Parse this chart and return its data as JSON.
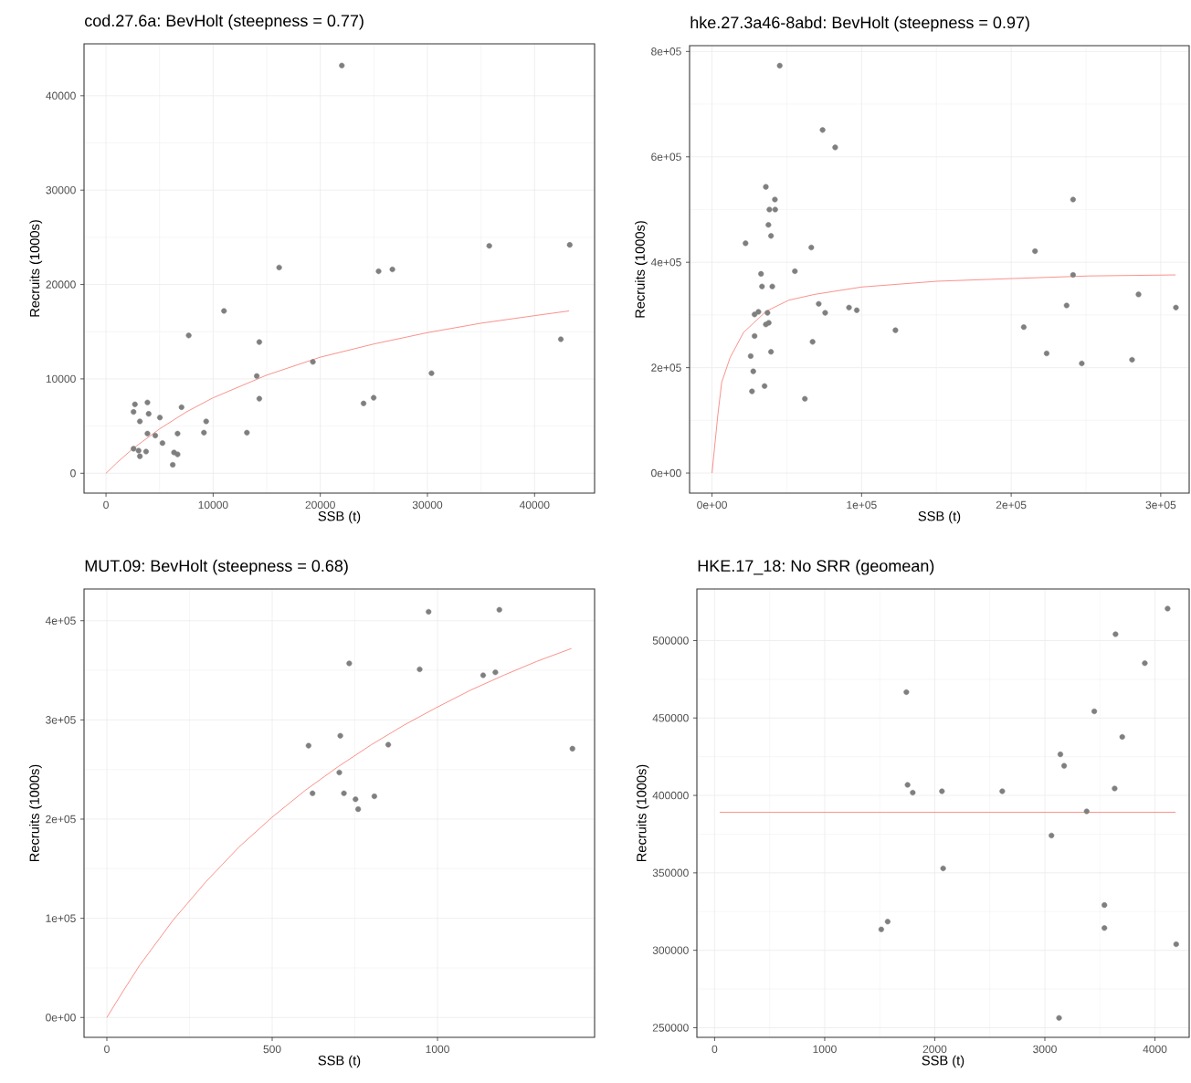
{
  "chart_data": [
    {
      "type": "scatter",
      "title": "cod.27.6a: BevHolt (steepness = 0.77)",
      "xlabel": "SSB (t)",
      "ylabel": "Recruits (1000s)",
      "xlim": [
        -2050,
        45600
      ],
      "ylim": [
        -2100,
        45500
      ],
      "xticks": [
        0,
        10000,
        20000,
        30000,
        40000
      ],
      "yticks": [
        0,
        10000,
        20000,
        30000,
        40000
      ],
      "grid": true,
      "series": [
        {
          "marker": "circle",
          "color": "#7f7f7f",
          "x": [
            2700,
            2570,
            3870,
            3980,
            3160,
            5030,
            7050,
            9350,
            9140,
            3870,
            4600,
            6680,
            5270,
            13150,
            2570,
            3040,
            3740,
            3160,
            6350,
            6680,
            6230,
            14310,
            14070,
            14310,
            7720,
            11010,
            16160,
            19310,
            22010,
            24040,
            24980,
            25440,
            26730,
            30380,
            35770,
            43280,
            42450
          ],
          "values": [
            7300,
            6500,
            7500,
            6300,
            5500,
            5900,
            7000,
            5500,
            4300,
            4200,
            4000,
            4200,
            3200,
            4300,
            2600,
            2400,
            2300,
            1800,
            2200,
            2000,
            900,
            7900,
            10300,
            13900,
            14600,
            17200,
            21800,
            11800,
            43200,
            7400,
            8000,
            21400,
            21600,
            10600,
            24100,
            24200,
            14200
          ]
        },
        {
          "type": "line",
          "marker": "none",
          "color": "#f8766d",
          "x": [
            0,
            1000,
            2500,
            5000,
            7500,
            10000,
            15000,
            20000,
            25000,
            30000,
            35000,
            40000,
            43220
          ],
          "values": [
            0,
            1100,
            2600,
            4700,
            6500,
            8000,
            10400,
            12300,
            13700,
            14900,
            15900,
            16700,
            17200
          ]
        }
      ]
    },
    {
      "type": "scatter",
      "title": "hke.27.3a46-8abd: BevHolt (steepness = 0.97)",
      "xlabel": "SSB (t)",
      "ylabel": "Recruits (1000s)",
      "xlim": [
        -15000,
        319000
      ],
      "ylim": [
        -38000,
        811000
      ],
      "xticks": [
        {
          "value": 0,
          "label": "0e+00"
        },
        {
          "value": 100000,
          "label": "1e+05"
        },
        {
          "value": 200000,
          "label": "2e+05"
        },
        {
          "value": 300000,
          "label": "3e+05"
        }
      ],
      "yticks": [
        {
          "value": 0,
          "label": "0e+00"
        },
        {
          "value": 200000,
          "label": "2e+05"
        },
        {
          "value": 400000,
          "label": "4e+05"
        },
        {
          "value": 600000,
          "label": "6e+05"
        },
        {
          "value": 800000,
          "label": "8e+05"
        }
      ],
      "grid": true,
      "series": [
        {
          "marker": "circle",
          "color": "#7f7f7f",
          "x": [
            45260,
            73920,
            82330,
            35990,
            42030,
            38360,
            42240,
            37720,
            39440,
            22410,
            66380,
            55390,
            32760,
            33410,
            40300,
            71340,
            75650,
            91590,
            96770,
            28450,
            31030,
            37070,
            35990,
            37930,
            28450,
            122630,
            67240,
            25860,
            39440,
            27590,
            35130,
            26720,
            62070,
            208410,
            215950,
            223710,
            237070,
            241380,
            241380,
            247200,
            280820,
            285130,
            310130
          ],
          "values": [
            773000,
            651000,
            618000,
            543000,
            519000,
            500000,
            500000,
            471000,
            450000,
            436000,
            428000,
            383000,
            378000,
            354000,
            354000,
            321000,
            304000,
            314000,
            309000,
            301000,
            306000,
            304000,
            282000,
            285000,
            260000,
            271000,
            249000,
            222000,
            230000,
            193000,
            165000,
            155000,
            141000,
            277000,
            421000,
            227000,
            318000,
            519000,
            376000,
            208000,
            215000,
            339000,
            314000
          ]
        },
        {
          "type": "line",
          "marker": "none",
          "color": "#f8766d",
          "x": [
            0,
            3880,
            6470,
            12070,
            21120,
            36210,
            51290,
            68530,
            100000,
            150430,
            200000,
            251720,
            309910
          ],
          "values": [
            0,
            110000,
            172000,
            219000,
            267000,
            307000,
            328000,
            339000,
            353000,
            364000,
            369000,
            374000,
            376000
          ]
        }
      ]
    },
    {
      "type": "scatter",
      "title": "MUT.09: BevHolt (steepness = 0.68)",
      "xlabel": "SSB (t)",
      "ylabel": "Recruits (1000s)",
      "xlim": [
        -69,
        1475
      ],
      "ylim": [
        -20000,
        432000
      ],
      "xticks": [
        0,
        500,
        1000
      ],
      "yticks": [
        {
          "value": 0,
          "label": "0e+00"
        },
        {
          "value": 100000,
          "label": "1e+05"
        },
        {
          "value": 200000,
          "label": "2e+05"
        },
        {
          "value": 300000,
          "label": "3e+05"
        },
        {
          "value": 400000,
          "label": "4e+05"
        }
      ],
      "grid": true,
      "series": [
        {
          "marker": "circle",
          "color": "#7f7f7f",
          "x": [
            973,
            1187,
            733,
            946,
            1138,
            1175,
            706,
            610,
            851,
            1408,
            703,
            622,
            717,
            752,
            809,
            760
          ],
          "values": [
            409000,
            411000,
            357000,
            351000,
            345000,
            348000,
            284000,
            274000,
            275000,
            271000,
            247000,
            226000,
            226000,
            220000,
            223000,
            210000
          ]
        },
        {
          "type": "line",
          "marker": "none",
          "color": "#f8766d",
          "x": [
            0,
            50,
            100,
            200,
            300,
            400,
            500,
            600,
            700,
            800,
            900,
            1000,
            1100,
            1200,
            1300,
            1405
          ],
          "values": [
            0,
            27000,
            53000,
            98000,
            137000,
            172000,
            202000,
            229000,
            253000,
            275000,
            295000,
            313000,
            330000,
            345000,
            359000,
            372000
          ]
        }
      ]
    },
    {
      "type": "scatter",
      "title": "HKE.17_18: No SRR (geomean)",
      "xlabel": "SSB (t)",
      "ylabel": "Recruits (1000s)",
      "xlim": [
        -161,
        4311
      ],
      "ylim": [
        243800,
        533300
      ],
      "xticks": [
        0,
        1000,
        2000,
        3000,
        4000
      ],
      "yticks": [
        250000,
        300000,
        350000,
        400000,
        450000,
        500000
      ],
      "grid": true,
      "series": [
        {
          "marker": "circle",
          "color": "#7f7f7f",
          "x": [
            4115,
            3642,
            3908,
            1742,
            3449,
            3703,
            3141,
            3175,
            1753,
            1800,
            2065,
            2613,
            3634,
            3380,
            3060,
            2076,
            3541,
            1572,
            1514,
            3541,
            4193,
            3129
          ],
          "values": [
            520600,
            504100,
            485400,
            466700,
            454300,
            437800,
            426500,
            419100,
            406800,
            401800,
            402700,
            402700,
            404500,
            389700,
            374100,
            352900,
            329200,
            318500,
            313500,
            314400,
            303900,
            256300
          ]
        },
        {
          "type": "line",
          "marker": "none",
          "color": "#f8766d",
          "x": [
            46,
            4187
          ],
          "values": [
            389100,
            389100
          ]
        }
      ]
    }
  ]
}
